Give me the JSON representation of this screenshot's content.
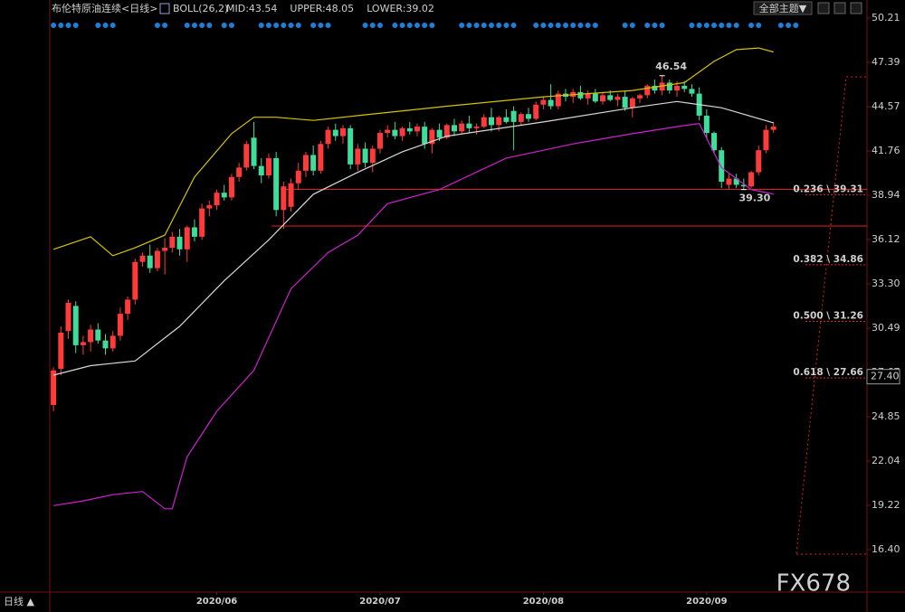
{
  "chart_data": {
    "type": "candlestick",
    "title": "布伦特原油连续<日线>",
    "indicator": "BOLL(26,2)",
    "theme_button": "全部主题▼",
    "period": "日线 ▲",
    "watermark": "FX678",
    "up_color": "#ff3a3a",
    "down_color": "#3fdc9a",
    "xlim": [
      -0.5,
      109.6
    ],
    "xticks": [
      {
        "value": 22,
        "label": "2020/06"
      },
      {
        "value": 44,
        "label": "2020/07"
      },
      {
        "value": 66,
        "label": "2020/08"
      },
      {
        "value": 88,
        "label": "2020/09"
      }
    ],
    "ylim": [
      13.7,
      50.78
    ],
    "yticks": [
      50.21,
      47.39,
      44.57,
      41.76,
      38.94,
      36.12,
      {
        "value": 33.3,
        "label": "33.30"
      },
      30.49,
      27.67,
      24.85,
      22.04,
      19.22,
      {
        "value": 16.4,
        "label": "16.40"
      }
    ],
    "open": [
      25.6,
      27.9,
      30.3,
      31.9,
      29.4,
      29.6,
      30.4,
      29.7,
      29.2,
      30.0,
      31.4,
      32.3,
      34.7,
      35.1,
      34.3,
      35.4,
      35.6,
      36.3,
      35.5,
      36.9,
      36.3,
      38.1,
      38.3,
      39.1,
      38.8,
      40.1,
      40.7,
      42.6,
      40.8,
      40.2,
      41.3,
      38.0,
      38.2,
      39.7,
      40.5,
      41.5,
      40.5,
      42.2,
      43.1,
      42.7,
      43.2,
      40.9,
      41.9,
      41.0,
      41.9,
      42.9,
      43.1,
      42.7,
      43.2,
      43.0,
      43.3,
      42.2,
      43.1,
      42.6,
      43.4,
      43.0,
      43.5,
      43.2,
      43.3,
      43.9,
      43.4,
      43.9,
      44.3,
      43.6,
      44.1,
      43.8,
      44.7,
      45.0,
      44.6,
      45.4,
      45.2,
      45.5,
      45.1,
      45.4,
      44.9,
      45.3,
      45.0,
      45.2,
      44.5,
      45.1,
      45.3,
      45.9,
      45.6,
      46.1,
      45.6,
      45.9,
      45.7,
      45.4,
      44.0,
      42.9,
      41.8,
      39.6,
      40.0,
      39.6,
      39.5,
      40.4,
      41.8,
      43.1
    ],
    "high": [
      28.0,
      30.6,
      32.3,
      32.2,
      30.0,
      30.7,
      30.8,
      30.1,
      30.3,
      31.8,
      32.5,
      34.9,
      35.3,
      35.8,
      35.6,
      36.2,
      36.6,
      36.8,
      37.0,
      37.4,
      38.4,
      38.6,
      39.3,
      39.6,
      40.3,
      41.0,
      42.4,
      43.6,
      41.3,
      41.6,
      41.7,
      39.8,
      40.0,
      41.0,
      41.7,
      42.1,
      42.4,
      43.3,
      43.5,
      43.4,
      43.4,
      42.2,
      42.3,
      42.1,
      43.1,
      43.4,
      43.6,
      43.3,
      43.6,
      43.5,
      43.6,
      43.2,
      43.5,
      43.5,
      43.8,
      43.7,
      44.0,
      43.5,
      44.1,
      44.5,
      44.0,
      44.4,
      44.6,
      44.2,
      44.5,
      44.9,
      45.2,
      46.0,
      45.6,
      45.7,
      45.7,
      45.9,
      45.6,
      45.7,
      45.5,
      45.6,
      45.4,
      45.6,
      45.2,
      45.4,
      46.0,
      46.3,
      46.54,
      46.3,
      46.2,
      46.2,
      46.0,
      45.8,
      44.4,
      43.0,
      42.0,
      40.3,
      40.3,
      40.0,
      40.5,
      42.1,
      43.4,
      43.6
    ],
    "low": [
      25.2,
      27.5,
      29.8,
      28.9,
      28.8,
      29.0,
      29.5,
      28.8,
      29.0,
      29.7,
      31.0,
      32.0,
      34.4,
      34.0,
      34.1,
      33.9,
      35.3,
      35.1,
      34.7,
      36.0,
      36.1,
      37.6,
      38.0,
      38.6,
      38.6,
      39.8,
      40.5,
      40.6,
      39.7,
      40.0,
      37.6,
      36.8,
      37.9,
      39.3,
      40.1,
      40.2,
      40.3,
      41.9,
      42.4,
      42.2,
      40.6,
      40.5,
      40.7,
      40.4,
      41.6,
      42.6,
      42.5,
      42.4,
      42.8,
      42.7,
      41.9,
      41.6,
      42.4,
      42.5,
      42.7,
      42.8,
      42.9,
      42.8,
      43.2,
      43.0,
      43.0,
      43.5,
      41.8,
      43.4,
      43.6,
      43.7,
      44.4,
      44.4,
      44.4,
      44.9,
      44.8,
      45.0,
      44.7,
      44.8,
      44.7,
      44.9,
      44.6,
      44.3,
      43.9,
      44.8,
      45.1,
      45.4,
      45.3,
      45.4,
      45.2,
      45.5,
      45.2,
      43.7,
      42.5,
      41.6,
      39.4,
      39.3,
      39.4,
      39.3,
      39.4,
      40.2,
      41.6,
      42.9
    ],
    "close": [
      27.8,
      30.2,
      32.1,
      29.4,
      29.6,
      30.4,
      29.7,
      29.2,
      30.0,
      31.4,
      32.3,
      34.7,
      35.1,
      34.3,
      35.4,
      35.6,
      36.3,
      35.5,
      36.9,
      36.3,
      38.1,
      38.3,
      39.1,
      38.8,
      40.1,
      40.7,
      42.2,
      40.8,
      40.2,
      41.3,
      38.0,
      39.5,
      39.7,
      40.5,
      41.5,
      40.5,
      42.2,
      43.1,
      42.7,
      43.2,
      40.9,
      41.9,
      41.0,
      41.9,
      42.9,
      43.1,
      42.7,
      43.2,
      43.0,
      43.3,
      42.2,
      43.1,
      42.6,
      43.4,
      43.0,
      43.5,
      43.2,
      43.3,
      43.9,
      43.4,
      43.9,
      43.6,
      43.6,
      44.1,
      43.8,
      44.7,
      45.0,
      44.6,
      45.4,
      45.2,
      45.5,
      45.1,
      45.4,
      44.9,
      45.3,
      45.0,
      45.2,
      44.5,
      45.1,
      45.3,
      45.9,
      45.6,
      46.1,
      45.6,
      45.9,
      45.7,
      45.4,
      44.0,
      42.9,
      41.8,
      39.8,
      40.0,
      39.6,
      39.5,
      40.4,
      41.8,
      43.1,
      43.3
    ],
    "series": [
      {
        "name": "MID:43.54",
        "color": "#d8d8d8",
        "x": [
          0,
          5,
          11,
          17,
          23,
          29,
          35,
          41,
          47,
          53,
          66,
          78,
          84,
          90,
          97
        ],
        "values": [
          27.5,
          28.1,
          28.4,
          30.6,
          33.5,
          36.1,
          39.0,
          40.4,
          41.7,
          42.7,
          43.6,
          44.5,
          44.9,
          44.5,
          43.54
        ]
      },
      {
        "name": "UPPER:48.05",
        "color": "#d4c400",
        "x": [
          0,
          5,
          8,
          11,
          15,
          19,
          24,
          27,
          30,
          35,
          41,
          53,
          66,
          78,
          85,
          89,
          92,
          95,
          97
        ],
        "values": [
          35.5,
          36.3,
          35.1,
          35.6,
          36.4,
          40.1,
          42.85,
          43.9,
          43.9,
          43.7,
          44.0,
          44.6,
          45.2,
          45.6,
          46.1,
          47.45,
          48.2,
          48.3,
          48.05
        ]
      },
      {
        "name": "LOWER:39.02",
        "color": "#d020d0",
        "x": [
          0,
          4,
          8,
          12,
          15,
          16,
          18,
          22,
          27,
          32,
          37,
          41,
          45,
          52,
          61,
          70,
          78,
          84,
          87,
          90,
          94,
          97
        ],
        "values": [
          19.2,
          19.5,
          19.9,
          20.1,
          19.0,
          19.0,
          22.3,
          25.2,
          27.8,
          33.0,
          35.3,
          36.4,
          38.4,
          39.3,
          41.3,
          42.2,
          42.85,
          43.3,
          43.5,
          40.7,
          39.3,
          39.02
        ]
      }
    ],
    "annotations": [
      {
        "text": "46.54",
        "x": 82,
        "value": 46.54,
        "color": "#ff4a4a"
      },
      {
        "text": "39.30",
        "x": 93,
        "value": 39.3,
        "color": "#4ac8c0"
      }
    ],
    "hlines": [
      39.31,
      36.98
    ],
    "fib_levels": [
      {
        "label": "0.236 \\ 39.31",
        "value": 39.31
      },
      {
        "label": "0.382 \\ 34.86",
        "value": 34.86
      },
      {
        "label": "0.500 \\ 31.26",
        "value": 31.26
      },
      {
        "label": "0.618 \\ 27.66",
        "value": 27.66
      }
    ],
    "price_tag": {
      "value": 27.4,
      "label": "27.40"
    }
  }
}
